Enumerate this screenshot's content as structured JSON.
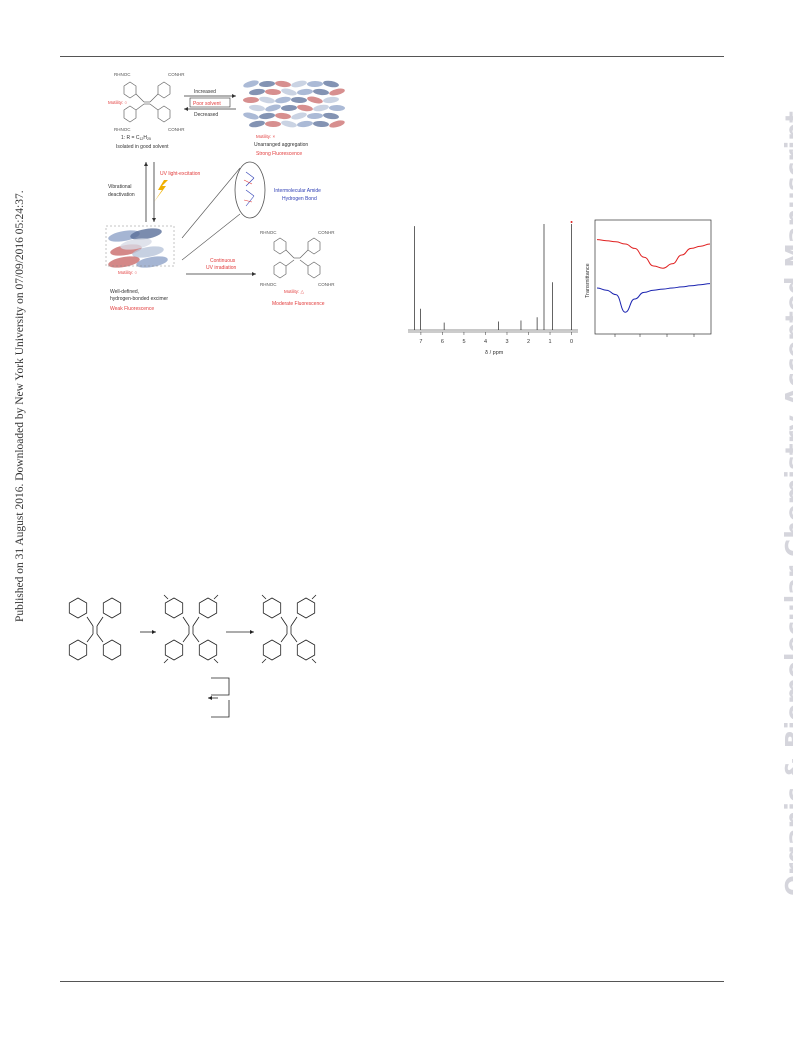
{
  "margin_left": "Published on 31 August 2016. Downloaded by New York University on 07/09/2016 05:24:37.",
  "margin_right": "Organic & Biomolecular Chemistry Accepted Manuscript",
  "figure1": {
    "rhnoc_tl": "RHNOC",
    "conhr_tr": "CONHR",
    "rhnoc_bl": "RHNOC",
    "conhr_br": "CONHR",
    "motility_1": "Motility: ○",
    "compound": "1: R = C",
    "compound_sub": "12",
    "compound_tail": "H",
    "compound_sub2": "25",
    "isolated": "Isolated in good solvent",
    "increased": "Increased",
    "poor_solvent": "Poor solvent",
    "decreased": "Decreased",
    "motility_agg": "Motility: ×",
    "unarranged": "Unarranged aggregation",
    "strong": "Strong Fluorescence",
    "vibrational": "Vibrational",
    "deactivation": "deactivation",
    "uv_excitation": "UV light-excitation",
    "intermolecular": "Intermolecular Amide",
    "hbond": "Hydrogen Bond",
    "continuous": "Continuous",
    "uv_irradiation": "UV irradiation",
    "motility_excimer": "Motility: ○",
    "well_defined": "Well-defined,",
    "hbonded": "hydrogen-bonded excimer",
    "weak": "Weak Fluorescence",
    "rhnoc_r1": "RHNOC",
    "conhr_r1": "CONHR",
    "rhnoc_r2": "RHNOC",
    "conhr_r2": "CONHR",
    "motility_moderate": "Motility: △",
    "moderate": "Moderate Fluorescence"
  },
  "nmr": {
    "xlabel": "δ / ppm",
    "ticks": [
      "7",
      "6",
      "5",
      "4",
      "3",
      "2",
      "1",
      "0"
    ]
  },
  "ir": {
    "ylabel": "Transmittance"
  },
  "colors": {
    "red_text": "#e23b3b",
    "blue_text": "#2f3fb5",
    "ir_red": "#e02020",
    "ir_blue": "#1a23b0",
    "watermark": "#d5d5dc"
  },
  "chart_data": [
    {
      "type": "line",
      "title": "",
      "xlabel": "δ / ppm",
      "ylabel": "",
      "xlim": [
        7.6,
        -0.3
      ],
      "x_ticks": [
        7,
        6,
        5,
        4,
        3,
        2,
        1,
        0
      ],
      "peaks": [
        {
          "x": 7.3,
          "height": 0.98
        },
        {
          "x": 7.02,
          "height": 0.2
        },
        {
          "x": 5.92,
          "height": 0.07
        },
        {
          "x": 3.4,
          "height": 0.08
        },
        {
          "x": 2.35,
          "height": 0.09
        },
        {
          "x": 1.6,
          "height": 0.12
        },
        {
          "x": 1.28,
          "height": 1.0
        },
        {
          "x": 0.88,
          "height": 0.45
        },
        {
          "x": 0.0,
          "height": 1.0
        }
      ]
    },
    {
      "type": "line",
      "title": "",
      "xlabel": "",
      "ylabel": "Transmittance",
      "series": [
        {
          "color": "#e02020",
          "values": [
            0.84,
            0.83,
            0.82,
            0.8,
            0.76,
            0.68,
            0.6,
            0.58,
            0.62,
            0.7,
            0.76,
            0.78,
            0.8
          ]
        },
        {
          "color": "#1a23b0",
          "values": [
            0.4,
            0.38,
            0.34,
            0.18,
            0.3,
            0.36,
            0.38,
            0.39,
            0.4,
            0.41,
            0.42,
            0.43,
            0.44
          ]
        }
      ]
    }
  ]
}
